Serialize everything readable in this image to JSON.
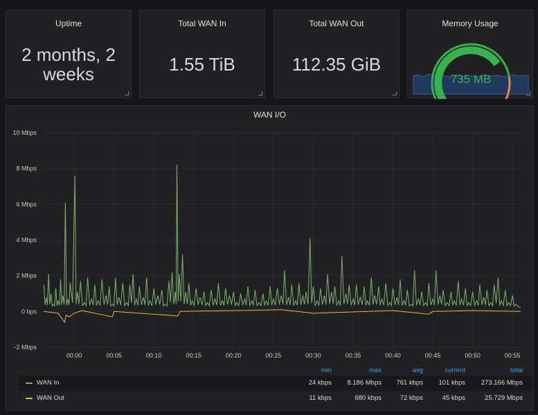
{
  "stats": {
    "uptime": {
      "title": "Uptime",
      "line1": "2 months, 2",
      "line2": "weeks"
    },
    "wan_in": {
      "title": "Total WAN In",
      "value": "1.55 TiB"
    },
    "wan_out": {
      "title": "Total WAN Out",
      "value": "112.35 GiB"
    },
    "memory": {
      "title": "Memory Usage",
      "value": "735 MB",
      "fraction": 0.7,
      "thresholds": {
        "green_end": 0.8,
        "orange_end": 1.0
      }
    }
  },
  "colors": {
    "wan_in": "#7eb26d",
    "wan_out": "#eab839",
    "gauge_green": "#37b24d",
    "gauge_orange": "#ef843c",
    "accent_header": "#33a2e5"
  },
  "chart_data": {
    "type": "line",
    "title": "WAN I/O",
    "x_ticks": [
      "00:00",
      "00:05",
      "00:10",
      "00:15",
      "00:20",
      "00:25",
      "00:30",
      "00:35",
      "00:40",
      "00:45",
      "00:50",
      "00:55"
    ],
    "x_range_minutes": [
      -4,
      56.2
    ],
    "y_ticks": [
      "10 Mbps",
      "8 Mbps",
      "6 Mbps",
      "4 Mbps",
      "2 Mbps",
      "0 bps",
      "-2 Mbps"
    ],
    "ylim_mbps": [
      -2,
      10
    ],
    "series": [
      {
        "name": "WAN In",
        "color": "#7eb26d",
        "peaks_mbps": [
          [
            -3.8,
            1.5
          ],
          [
            -3.5,
            0.8
          ],
          [
            -3.2,
            2.1
          ],
          [
            -2.9,
            1.0
          ],
          [
            -2.6,
            0.4
          ],
          [
            -2.3,
            1.3
          ],
          [
            -2.0,
            0.6
          ],
          [
            -1.7,
            1.8
          ],
          [
            -1.4,
            0.9
          ],
          [
            -1.1,
            6.1
          ],
          [
            -0.8,
            0.7
          ],
          [
            -0.5,
            1.6
          ],
          [
            0.1,
            7.6
          ],
          [
            0.4,
            1.1
          ],
          [
            0.8,
            1.7
          ],
          [
            1.3,
            0.5
          ],
          [
            1.7,
            1.9
          ],
          [
            2.2,
            0.7
          ],
          [
            2.6,
            1.5
          ],
          [
            3.0,
            0.6
          ],
          [
            3.5,
            1.8
          ],
          [
            4.0,
            0.9
          ],
          [
            4.4,
            1.4
          ],
          [
            4.8,
            0.4
          ],
          [
            5.2,
            1.9
          ],
          [
            5.6,
            0.8
          ],
          [
            6.1,
            1.6
          ],
          [
            6.6,
            0.5
          ],
          [
            7.0,
            1.5
          ],
          [
            7.4,
            2.1
          ],
          [
            7.8,
            0.7
          ],
          [
            8.2,
            1.4
          ],
          [
            8.7,
            0.8
          ],
          [
            9.1,
            1.9
          ],
          [
            9.5,
            0.6
          ],
          [
            10.0,
            1.3
          ],
          [
            10.5,
            0.9
          ],
          [
            11.0,
            1.2
          ],
          [
            11.4,
            0.4
          ],
          [
            11.9,
            1.7
          ],
          [
            12.3,
            2.2
          ],
          [
            12.7,
            1.1
          ],
          [
            12.9,
            8.2
          ],
          [
            13.2,
            2.1
          ],
          [
            13.6,
            3.2
          ],
          [
            14.0,
            1.1
          ],
          [
            14.4,
            1.6
          ],
          [
            14.8,
            0.6
          ],
          [
            15.3,
            1.3
          ],
          [
            15.8,
            0.8
          ],
          [
            16.3,
            1.1
          ],
          [
            16.7,
            0.5
          ],
          [
            17.2,
            1.2
          ],
          [
            17.7,
            0.7
          ],
          [
            18.1,
            1.6
          ],
          [
            18.6,
            0.6
          ],
          [
            19.0,
            1.3
          ],
          [
            19.5,
            0.9
          ],
          [
            20.0,
            1.1
          ],
          [
            20.4,
            0.5
          ],
          [
            20.9,
            1.0
          ],
          [
            21.4,
            0.7
          ],
          [
            21.8,
            1.4
          ],
          [
            22.3,
            0.6
          ],
          [
            22.7,
            1.2
          ],
          [
            23.2,
            0.5
          ],
          [
            23.7,
            1.0
          ],
          [
            24.1,
            0.6
          ],
          [
            24.6,
            1.4
          ],
          [
            25.0,
            0.7
          ],
          [
            25.5,
            1.3
          ],
          [
            26.0,
            0.9
          ],
          [
            26.4,
            2.3
          ],
          [
            26.9,
            0.8
          ],
          [
            27.3,
            1.5
          ],
          [
            27.8,
            0.6
          ],
          [
            28.2,
            1.6
          ],
          [
            28.7,
            0.9
          ],
          [
            29.1,
            1.1
          ],
          [
            29.6,
            4.1
          ],
          [
            30.0,
            1.4
          ],
          [
            30.5,
            0.6
          ],
          [
            30.9,
            1.3
          ],
          [
            31.4,
            0.9
          ],
          [
            31.8,
            2.1
          ],
          [
            32.3,
            1.1
          ],
          [
            32.7,
            1.4
          ],
          [
            33.2,
            0.6
          ],
          [
            33.6,
            3.1
          ],
          [
            34.1,
            1.0
          ],
          [
            34.5,
            1.5
          ],
          [
            35.0,
            0.7
          ],
          [
            35.4,
            1.5
          ],
          [
            35.9,
            0.8
          ],
          [
            36.4,
            1.4
          ],
          [
            36.8,
            0.6
          ],
          [
            37.3,
            1.9
          ],
          [
            37.7,
            0.9
          ],
          [
            38.2,
            1.4
          ],
          [
            38.6,
            0.7
          ],
          [
            39.1,
            1.6
          ],
          [
            39.6,
            0.5
          ],
          [
            40.0,
            1.3
          ],
          [
            40.5,
            0.8
          ],
          [
            40.9,
            1.8
          ],
          [
            41.4,
            0.6
          ],
          [
            41.8,
            1.2
          ],
          [
            42.3,
            0.4
          ],
          [
            42.7,
            2.3
          ],
          [
            43.2,
            0.7
          ],
          [
            43.6,
            1.1
          ],
          [
            44.1,
            0.5
          ],
          [
            44.5,
            1.6
          ],
          [
            45.0,
            0.7
          ],
          [
            45.4,
            2.3
          ],
          [
            45.9,
            0.9
          ],
          [
            46.3,
            1.2
          ],
          [
            46.8,
            0.5
          ],
          [
            47.3,
            1.1
          ],
          [
            47.7,
            0.6
          ],
          [
            48.2,
            1.7
          ],
          [
            48.6,
            0.7
          ],
          [
            49.1,
            1.3
          ],
          [
            49.5,
            0.5
          ],
          [
            50.0,
            1.1
          ],
          [
            50.5,
            0.6
          ],
          [
            50.9,
            1.5
          ],
          [
            51.4,
            0.8
          ],
          [
            51.8,
            1.2
          ],
          [
            52.3,
            0.5
          ],
          [
            52.7,
            1.5
          ],
          [
            53.2,
            1.9
          ],
          [
            53.6,
            0.6
          ],
          [
            54.1,
            1.2
          ],
          [
            54.5,
            0.5
          ],
          [
            55.0,
            0.9
          ],
          [
            55.4,
            0.4
          ],
          [
            56.0,
            0.2
          ]
        ]
      },
      {
        "name": "WAN Out",
        "color": "#eab839",
        "peaks_mbps": [
          [
            -3.8,
            0.0
          ],
          [
            -2.0,
            -0.1
          ],
          [
            -1.2,
            -0.6
          ],
          [
            -1.0,
            -0.2
          ],
          [
            -0.6,
            -0.3
          ],
          [
            0.0,
            -0.1
          ],
          [
            1.0,
            0.05
          ],
          [
            4.8,
            -0.3
          ],
          [
            5.0,
            0.0
          ],
          [
            13.0,
            -0.25
          ],
          [
            13.3,
            0.0
          ],
          [
            20,
            0.05
          ],
          [
            26.0,
            0.1
          ],
          [
            30.0,
            -0.1
          ],
          [
            40.0,
            0.05
          ],
          [
            44.5,
            -0.15
          ],
          [
            45,
            0.0
          ],
          [
            50,
            0.05
          ],
          [
            56.0,
            0.0
          ]
        ]
      }
    ],
    "legend": {
      "headers": [
        "min",
        "max",
        "avg",
        "current",
        "total"
      ],
      "rows": [
        {
          "name": "WAN In",
          "color": "#7eb26d",
          "min": "24 kbps",
          "max": "8.186 Mbps",
          "avg": "761 kbps",
          "current": "101 kbps",
          "total": "273.166 Mbps"
        },
        {
          "name": "WAN Out",
          "color": "#eab839",
          "min": "11 kbps",
          "max": "680 kbps",
          "avg": "72 kbps",
          "current": "45 kbps",
          "total": "25.729 Mbps"
        }
      ]
    }
  }
}
